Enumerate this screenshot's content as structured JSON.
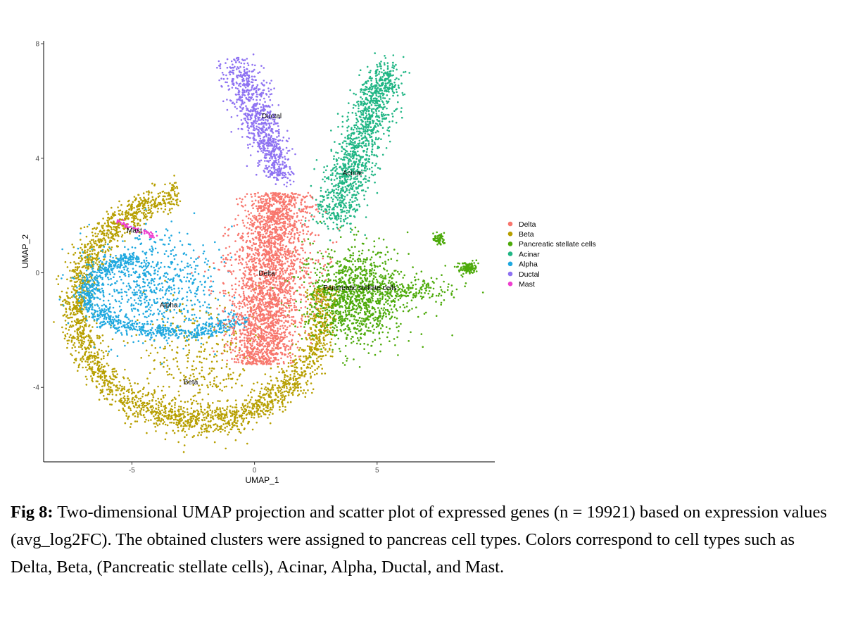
{
  "chart_data": {
    "type": "scatter",
    "xlabel": "UMAP_1",
    "ylabel": "UMAP_2",
    "xlim": [
      -8.6,
      9.8
    ],
    "ylim": [
      -6.6,
      8.1
    ],
    "xticks": [
      -5,
      0,
      5
    ],
    "yticks": [
      -4,
      0,
      4,
      8
    ],
    "legend_position": "right",
    "series": [
      {
        "name": "Delta",
        "color": "#F8766D",
        "label_at": [
          0.5,
          -0.1
        ],
        "approx_points": 2600
      },
      {
        "name": "Beta",
        "color": "#B79F00",
        "label_at": [
          -2.6,
          -3.9
        ],
        "approx_points": 3000
      },
      {
        "name": "Pancreatic stellate cells",
        "color": "#4DAA0A",
        "label_at": [
          4.3,
          -0.6
        ],
        "approx_points": 1500
      },
      {
        "name": "Acinar",
        "color": "#21B685",
        "label_at": [
          4.0,
          3.4
        ],
        "approx_points": 1300
      },
      {
        "name": "Alpha",
        "color": "#1FA8DF",
        "label_at": [
          -3.5,
          -1.2
        ],
        "approx_points": 1500
      },
      {
        "name": "Ductal",
        "color": "#8E72F2",
        "label_at": [
          0.7,
          5.4
        ],
        "approx_points": 900
      },
      {
        "name": "Mast",
        "color": "#EE3FCF",
        "label_at": [
          -4.9,
          1.4
        ],
        "approx_points": 60
      }
    ]
  },
  "caption": {
    "label": "Fig 8:",
    "text": " Two-dimensional UMAP projection and scatter plot of expressed genes (n = 19921) based on expression values (avg_log2FC). The obtained clusters were assigned to pancreas cell types. Colors correspond to cell types such as Delta, Beta, (Pancreatic stellate cells), Acinar, Alpha, Ductal, and Mast."
  }
}
